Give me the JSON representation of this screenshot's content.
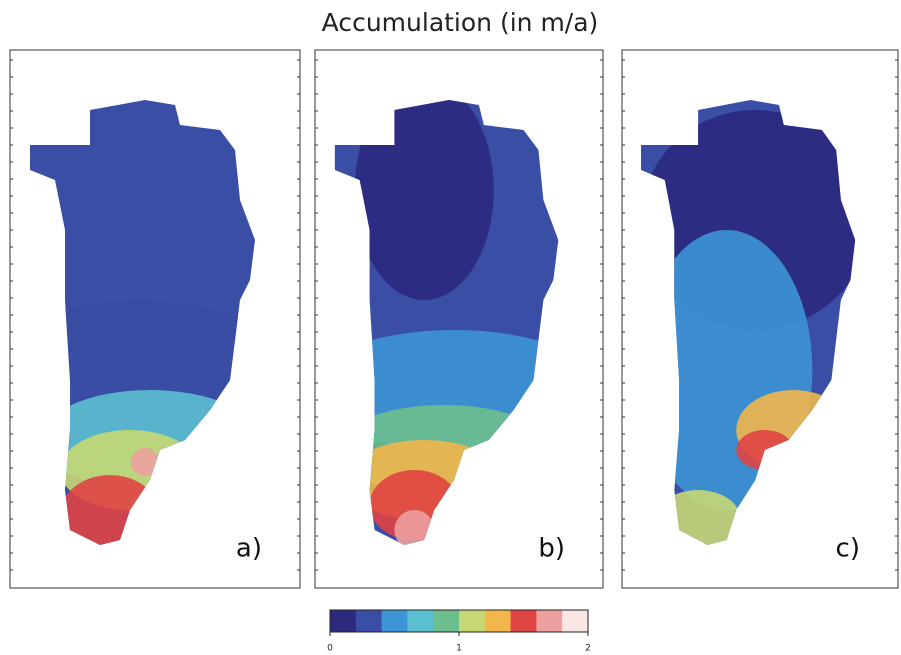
{
  "title": "Accumulation (in m/a)",
  "panels": [
    {
      "label": "a)"
    },
    {
      "label": "b)"
    },
    {
      "label": "c)"
    }
  ],
  "colorbar": {
    "lim": [
      0,
      2
    ],
    "ticks": [
      0,
      1,
      2
    ],
    "colors": [
      "#2b2a7e",
      "#3a4ea5",
      "#3d95d5",
      "#5cc0d2",
      "#6cbf8c",
      "#c6d874",
      "#f1b64c",
      "#e04443",
      "#eca0a0",
      "#fbe6e6"
    ]
  }
}
